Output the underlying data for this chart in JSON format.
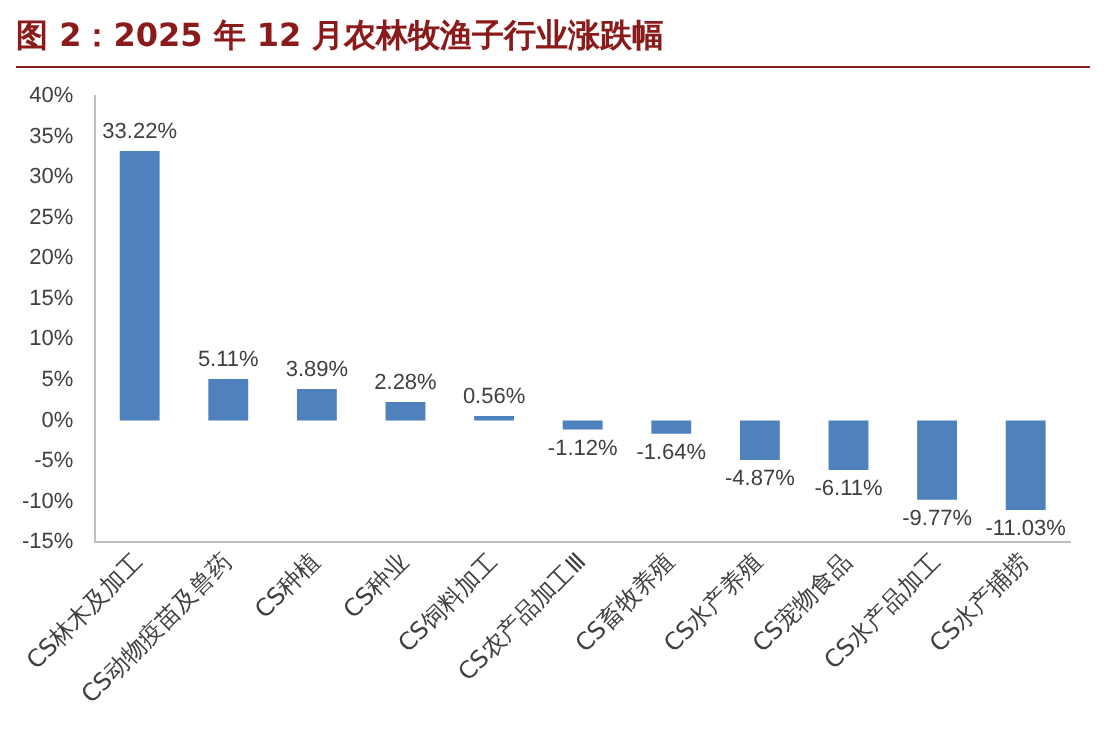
{
  "chart_data": {
    "type": "bar",
    "title": "图 2：2025 年 12 月农林牧渔子行业涨跌幅",
    "categories": [
      "CS林木及加工",
      "CS动物疫苗及兽药",
      "CS种植",
      "CS种业",
      "CS饲料加工",
      "CS农产品加工Ⅲ",
      "CS畜牧养殖",
      "CS水产养殖",
      "CS宠物食品",
      "CS水产品加工",
      "CS水产捕捞"
    ],
    "values": [
      33.22,
      5.11,
      3.89,
      2.28,
      0.56,
      -1.12,
      -1.64,
      -4.87,
      -6.11,
      -9.77,
      -11.03
    ],
    "value_labels": [
      "33.22%",
      "5.11%",
      "3.89%",
      "2.28%",
      "0.56%",
      "-1.12%",
      "-1.64%",
      "-4.87%",
      "-6.11%",
      "-9.77%",
      "-11.03%"
    ],
    "color": "#4f81bd",
    "ylim": [
      -15,
      40
    ],
    "yticks": [
      {
        "value": -15,
        "label": "-15%"
      },
      {
        "value": -10,
        "label": "-10%"
      },
      {
        "value": -5,
        "label": "-5%"
      },
      {
        "value": 0,
        "label": "0%"
      },
      {
        "value": 5,
        "label": "5%"
      },
      {
        "value": 10,
        "label": "10%"
      },
      {
        "value": 15,
        "label": "15%"
      },
      {
        "value": 20,
        "label": "20%"
      },
      {
        "value": 25,
        "label": "25%"
      },
      {
        "value": 30,
        "label": "30%"
      },
      {
        "value": 35,
        "label": "35%"
      },
      {
        "value": 40,
        "label": "40%"
      }
    ],
    "grid": false,
    "legend": false
  }
}
